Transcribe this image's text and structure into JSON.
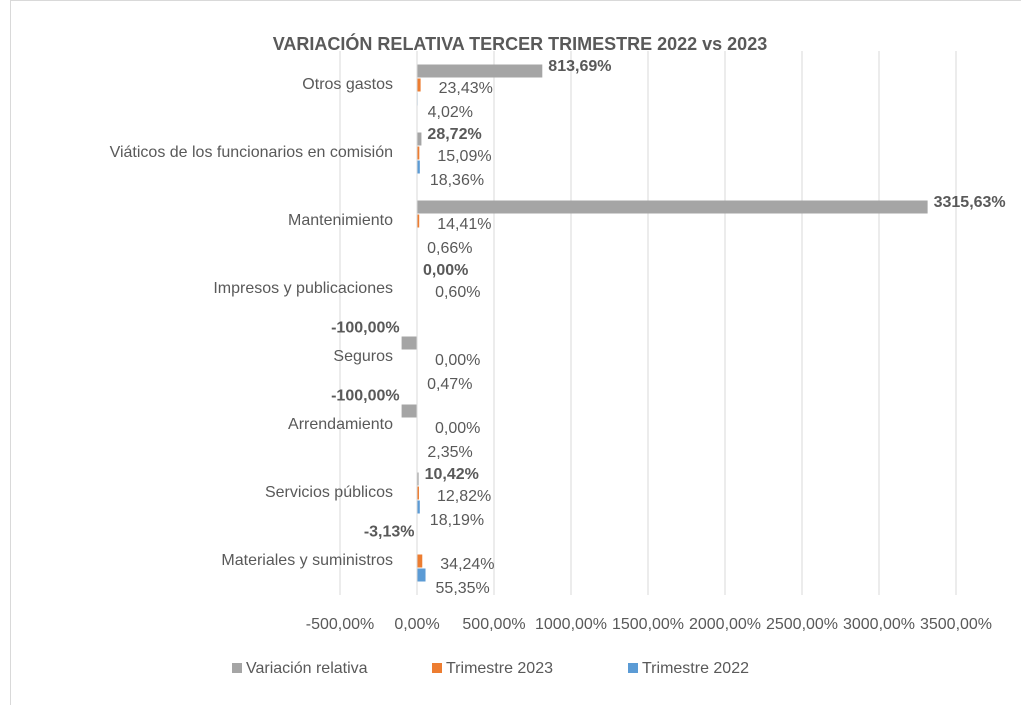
{
  "chart_data": {
    "type": "hbar",
    "title": "VARIACIÓN RELATIVA TERCER TRIMESTRE 2022 vs 2023",
    "categories": [
      "Otros gastos",
      "Viáticos de los funcionarios en comisión",
      "Mantenimiento",
      "Impresos y publicaciones",
      "Seguros",
      "Arrendamiento",
      "Servicios públicos",
      "Materiales y suministros"
    ],
    "series": [
      {
        "name": "Variación relativa",
        "color": "#a5a5a5",
        "values": [
          813.69,
          28.72,
          3315.63,
          0.0,
          -100.0,
          -100.0,
          10.42,
          -3.13
        ],
        "value_labels": [
          "813,69%",
          "28,72%",
          "3315,63%",
          "0,00%",
          "-100,00%",
          "-100,00%",
          "10,42%",
          "-3,13%"
        ]
      },
      {
        "name": "Trimestre 2023",
        "color": "#ed7d31",
        "values": [
          23.43,
          15.09,
          14.41,
          0.6,
          0.0,
          0.0,
          12.82,
          34.24
        ],
        "value_labels": [
          "23,43%",
          "15,09%",
          "14,41%",
          "0,60%",
          "0,00%",
          "0,00%",
          "12,82%",
          "34,24%"
        ]
      },
      {
        "name": "Trimestre 2022",
        "color": "#5b9bd5",
        "values": [
          4.02,
          18.36,
          0.66,
          0.6,
          0.47,
          2.35,
          18.19,
          55.35
        ],
        "value_labels": [
          "4,02%",
          "18,36%",
          "0,66%",
          null,
          "0,47%",
          "2,35%",
          "18,19%",
          "55,35%"
        ]
      }
    ],
    "xlim": [
      -500,
      3500
    ],
    "xticks": [
      {
        "value": -500,
        "label": "-500,00%"
      },
      {
        "value": 0,
        "label": "0,00%"
      },
      {
        "value": 500,
        "label": "500,00%"
      },
      {
        "value": 1000,
        "label": "1000,00%"
      },
      {
        "value": 1500,
        "label": "1500,00%"
      },
      {
        "value": 2000,
        "label": "2000,00%"
      },
      {
        "value": 2500,
        "label": "2500,00%"
      },
      {
        "value": 3000,
        "label": "3000,00%"
      },
      {
        "value": 3500,
        "label": "3500,00%"
      }
    ],
    "grid": true,
    "legend": "bottom"
  }
}
